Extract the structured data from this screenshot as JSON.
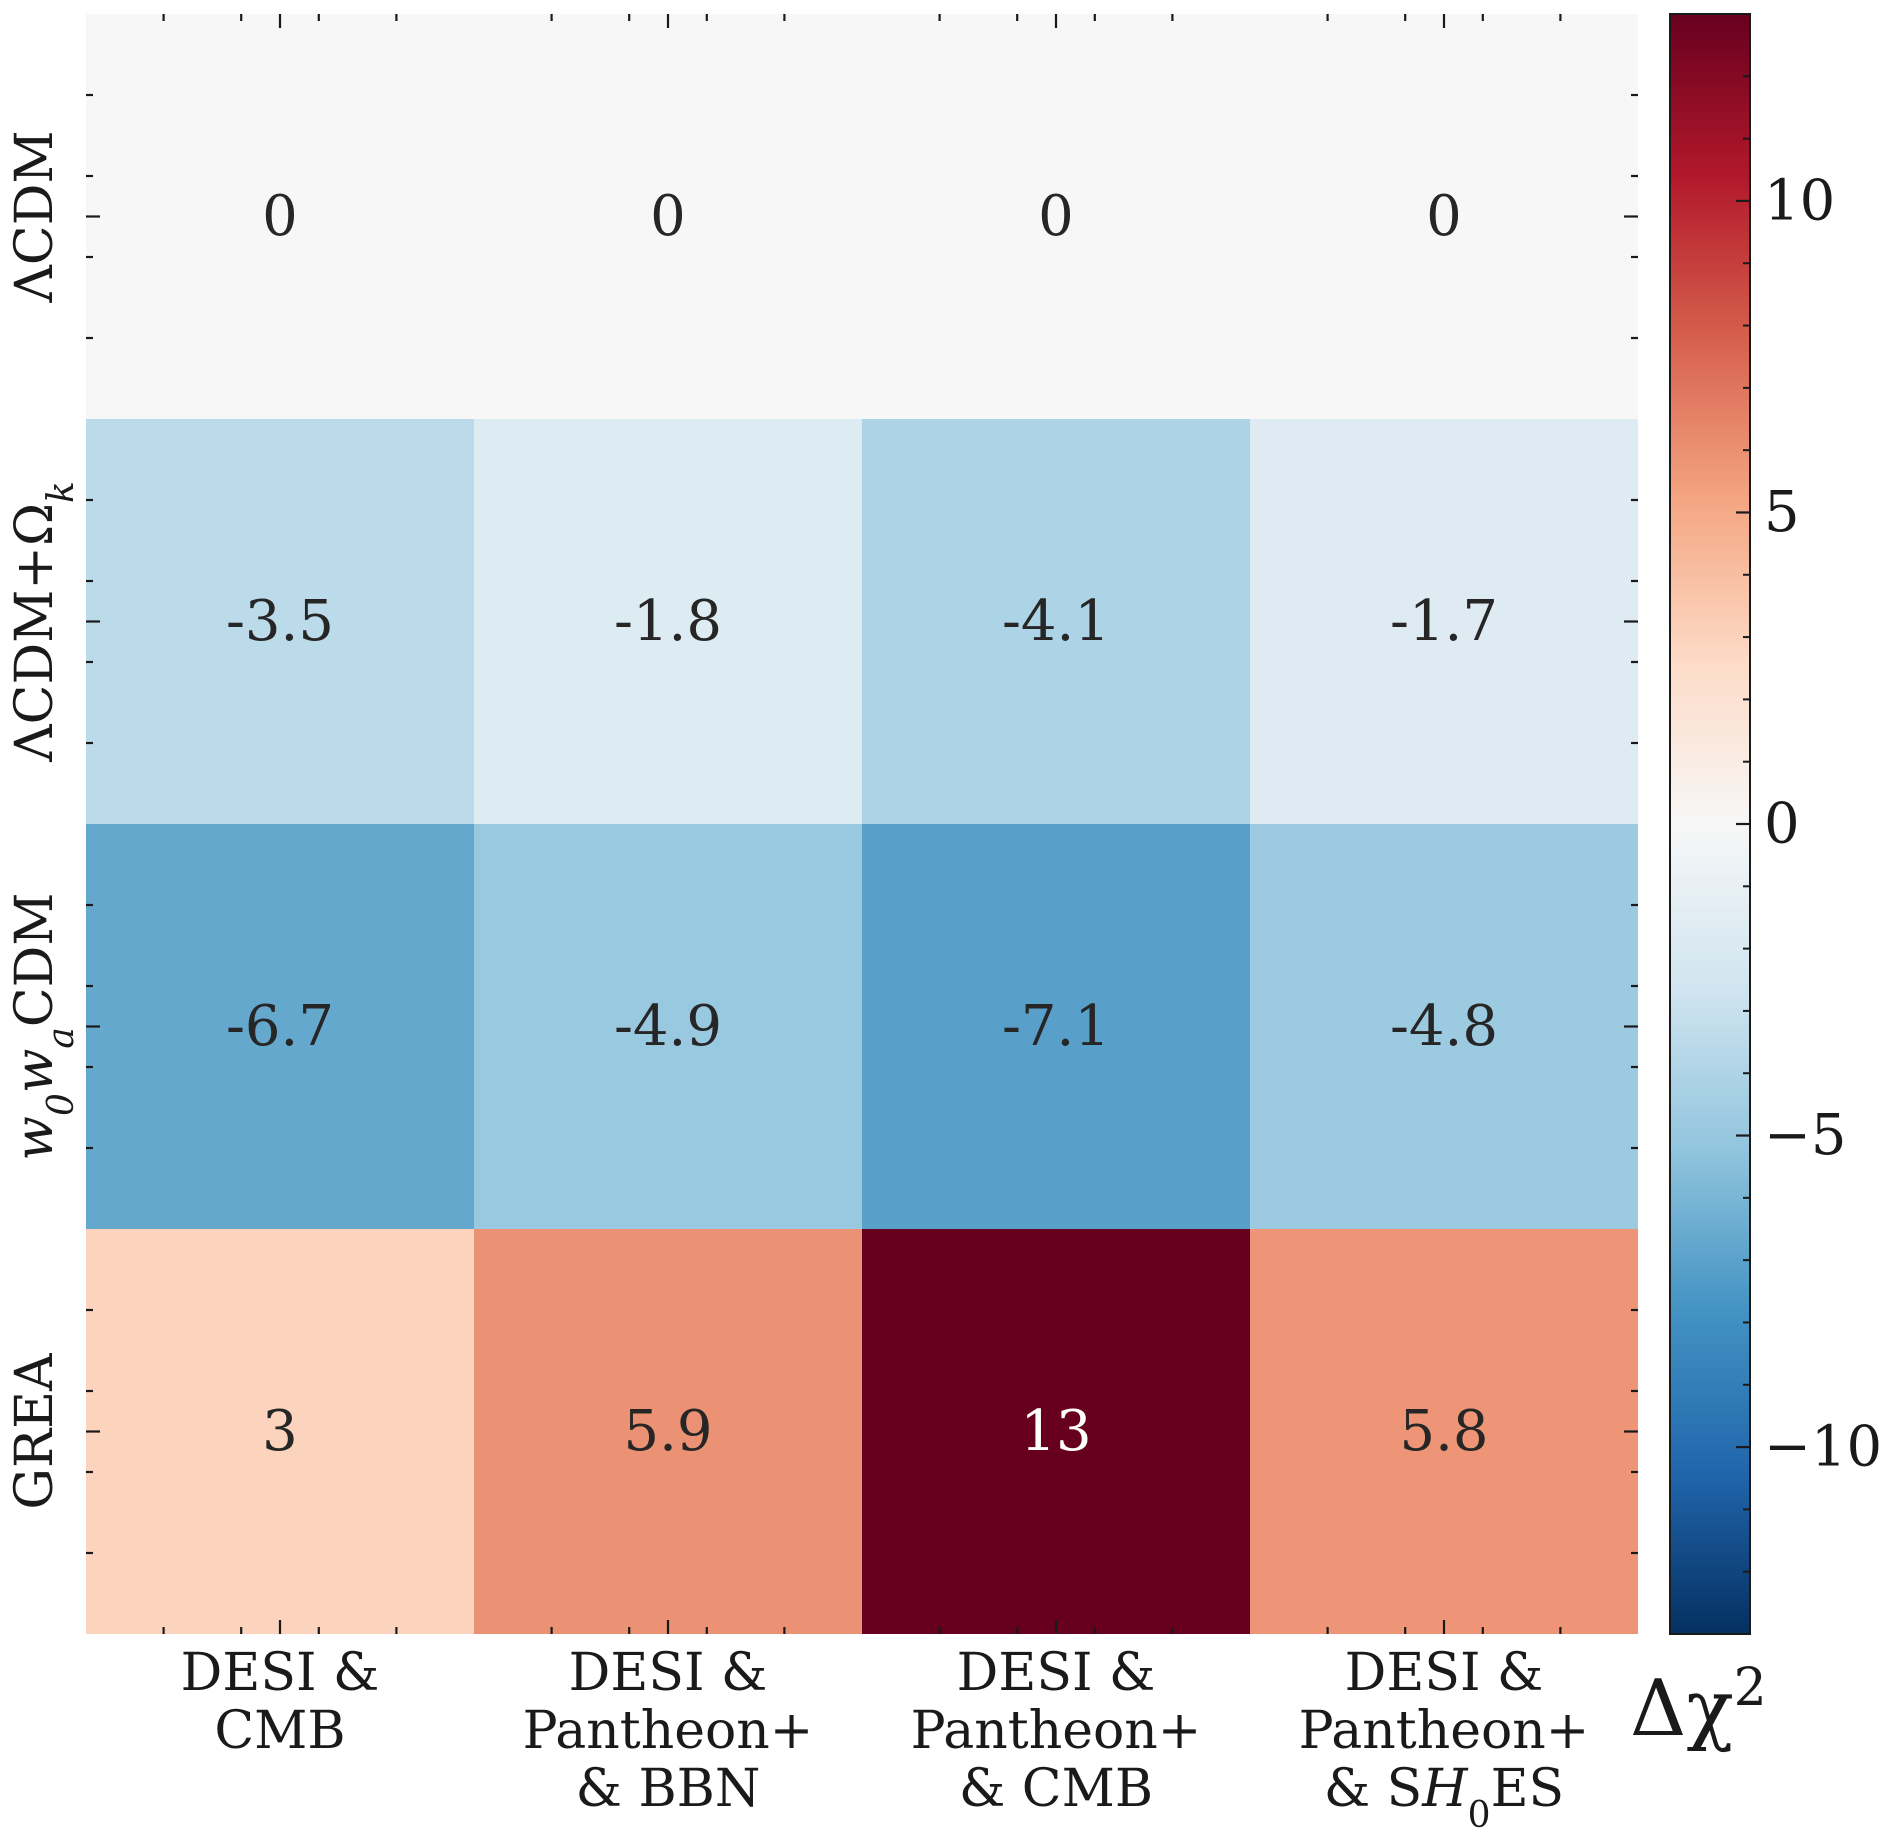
{
  "chart_data": {
    "type": "heatmap",
    "rows": [
      {
        "label": "ΛCDM"
      },
      {
        "label": "ΛCDM+Ω",
        "sub": "k"
      },
      {
        "label_parts": [
          {
            "t": "w"
          },
          {
            "t": "0",
            "sub": true
          },
          {
            "t": "w"
          },
          {
            "t": "a",
            "sub": true
          },
          {
            "t": "CDM"
          }
        ],
        "label": "w0waCDM"
      },
      {
        "label": "GREA"
      }
    ],
    "columns": [
      {
        "lines": [
          "DESI &",
          "CMB"
        ]
      },
      {
        "lines": [
          "DESI &",
          "Pantheon+",
          "& BBN"
        ]
      },
      {
        "lines": [
          "DESI &",
          "Pantheon+",
          "& CMB"
        ]
      },
      {
        "lines": [
          "DESI &",
          "Pantheon+",
          "& SH0ES"
        ],
        "rich_last": [
          {
            "t": "& S"
          },
          {
            "t": "H",
            "italic": true
          },
          {
            "t": "0",
            "sub": true
          },
          {
            "t": "ES"
          }
        ]
      }
    ],
    "values": [
      [
        0,
        0,
        0,
        0
      ],
      [
        -3.5,
        -1.8,
        -4.1,
        -1.7
      ],
      [
        -6.7,
        -4.9,
        -7.1,
        -4.8
      ],
      [
        3,
        5.9,
        13,
        5.8
      ]
    ],
    "value_labels": [
      [
        "0",
        "0",
        "0",
        "0"
      ],
      [
        "-3.5",
        "-1.8",
        "-4.1",
        "-1.7"
      ],
      [
        "-6.7",
        "-4.9",
        "-7.1",
        "-4.8"
      ],
      [
        "3",
        "5.9",
        "13",
        "5.8"
      ]
    ],
    "colormap": "RdBu_r",
    "vmin": -13,
    "vmax": 13,
    "colorbar": {
      "ticks": [
        10,
        5,
        0,
        -5,
        -10
      ],
      "tick_labels": [
        "10",
        "5",
        "0",
        "−5",
        "−10"
      ],
      "label": "Δχ2"
    },
    "colors": {
      "cmap_stops": [
        "#053061",
        "#2166ac",
        "#4393c3",
        "#92c5de",
        "#d1e5f0",
        "#f7f7f7",
        "#fddbc7",
        "#f4a582",
        "#d6604d",
        "#b2182b",
        "#67001f"
      ],
      "text_dark": "#262626",
      "text_light": "#ffffff"
    }
  }
}
